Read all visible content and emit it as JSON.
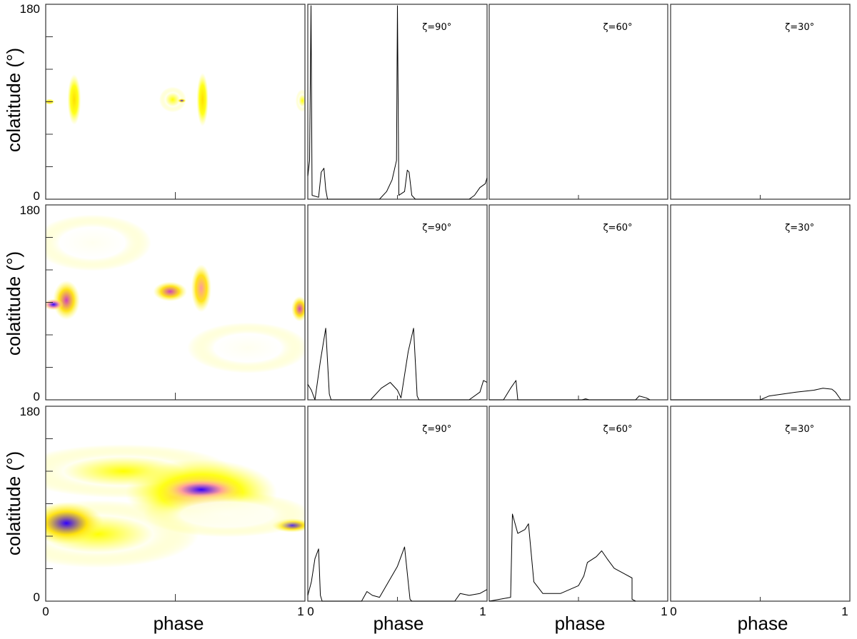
{
  "chart_data": {
    "type": "grid",
    "ylabel": "colatitude (°)",
    "xlabel": "phase",
    "ylim": [
      0,
      180
    ],
    "xlim": [
      0,
      1
    ],
    "map_ytick_labels": [
      "180",
      "0"
    ],
    "xtick_labels": [
      [
        "0",
        "1"
      ],
      [
        "0",
        "1"
      ],
      [
        "1",
        "0"
      ],
      [
        "1"
      ]
    ],
    "zeta_labels": [
      "ζ=90°",
      "ζ=60°",
      "ζ=30°"
    ],
    "colormap": [
      "#ffffff",
      "#fffff0",
      "#ffff00",
      "#ffe000",
      "#ff9aa0",
      "#d040c0",
      "#3000ff",
      "#0a0030"
    ],
    "rows": [
      {
        "map_blobs": [
          {
            "x": 0.015,
            "y": 90,
            "w": 0.03,
            "h": 4,
            "c": 0.55
          },
          {
            "x": 0.11,
            "y": 92,
            "w": 0.04,
            "h": 36,
            "c": 0.4
          },
          {
            "x": 0.49,
            "y": 92,
            "w": 0.08,
            "h": 18,
            "c": 0.3
          },
          {
            "x": 0.525,
            "y": 91,
            "w": 0.025,
            "h": 3,
            "c": 0.8
          },
          {
            "x": 0.605,
            "y": 92,
            "w": 0.035,
            "h": 38,
            "c": 0.4
          },
          {
            "x": 0.99,
            "y": 91,
            "w": 0.04,
            "h": 16,
            "c": 0.3
          }
        ],
        "light_curves": [
          [
            [
              0,
              0.12
            ],
            [
              0.01,
              0.2
            ],
            [
              0.018,
              1.0
            ],
            [
              0.024,
              0.02
            ],
            [
              0.06,
              0.01
            ],
            [
              0.075,
              0.14
            ],
            [
              0.09,
              0.16
            ],
            [
              0.1,
              0.05
            ],
            [
              0.11,
              0
            ],
            [
              0.4,
              0
            ],
            [
              0.44,
              0.04
            ],
            [
              0.47,
              0.1
            ],
            [
              0.495,
              0.2
            ],
            [
              0.5,
              1.0
            ],
            [
              0.508,
              0.02
            ],
            [
              0.54,
              0.04
            ],
            [
              0.555,
              0.15
            ],
            [
              0.565,
              0.14
            ],
            [
              0.58,
              0.02
            ],
            [
              0.6,
              0
            ],
            [
              0.9,
              0
            ],
            [
              0.93,
              0.02
            ],
            [
              0.96,
              0.06
            ],
            [
              0.99,
              0.08
            ],
            [
              1,
              0.11
            ]
          ],
          [],
          []
        ]
      },
      {
        "map_blobs": [
          {
            "x": 0.18,
            "y": 145,
            "w": 0.35,
            "h": 40,
            "c": 0.08
          },
          {
            "x": 0.08,
            "y": 92,
            "w": 0.08,
            "h": 28,
            "c": 0.7
          },
          {
            "x": 0.03,
            "y": 88,
            "w": 0.06,
            "h": 8,
            "c": 0.85
          },
          {
            "x": 0.48,
            "y": 100,
            "w": 0.1,
            "h": 14,
            "c": 0.75
          },
          {
            "x": 0.6,
            "y": 103,
            "w": 0.06,
            "h": 34,
            "c": 0.6
          },
          {
            "x": 0.98,
            "y": 84,
            "w": 0.05,
            "h": 18,
            "c": 0.7
          },
          {
            "x": 0.78,
            "y": 48,
            "w": 0.36,
            "h": 36,
            "c": 0.08
          }
        ],
        "light_curves": [
          [
            [
              0,
              0.08
            ],
            [
              0.02,
              0.05
            ],
            [
              0.04,
              0
            ],
            [
              0.07,
              0.2
            ],
            [
              0.1,
              0.37
            ],
            [
              0.12,
              0.03
            ],
            [
              0.13,
              0
            ],
            [
              0.35,
              0
            ],
            [
              0.41,
              0.06
            ],
            [
              0.46,
              0.09
            ],
            [
              0.5,
              0.05
            ],
            [
              0.52,
              0.01
            ],
            [
              0.56,
              0.25
            ],
            [
              0.59,
              0.37
            ],
            [
              0.61,
              0.02
            ],
            [
              0.62,
              0
            ],
            [
              0.9,
              0
            ],
            [
              0.96,
              0.04
            ],
            [
              0.98,
              0.1
            ],
            [
              1,
              0.09
            ]
          ],
          [
            [
              0,
              0
            ],
            [
              0.08,
              0
            ],
            [
              0.12,
              0.06
            ],
            [
              0.15,
              0.1
            ],
            [
              0.16,
              0
            ],
            [
              0.52,
              0
            ],
            [
              0.54,
              0.005
            ],
            [
              0.56,
              0
            ],
            [
              0.82,
              0
            ],
            [
              0.84,
              0.02
            ],
            [
              0.88,
              0.01
            ],
            [
              0.9,
              0
            ]
          ],
          [
            [
              0,
              0
            ],
            [
              0.5,
              0
            ],
            [
              0.55,
              0.02
            ],
            [
              0.7,
              0.04
            ],
            [
              0.8,
              0.05
            ],
            [
              0.85,
              0.06
            ],
            [
              0.9,
              0.055
            ],
            [
              0.92,
              0.04
            ],
            [
              0.95,
              0
            ]
          ]
        ]
      },
      {
        "map_blobs": [
          {
            "x": 0.3,
            "y": 120,
            "w": 0.65,
            "h": 38,
            "c": 0.25
          },
          {
            "x": 0.6,
            "y": 100,
            "w": 0.45,
            "h": 48,
            "c": 0.55
          },
          {
            "x": 0.6,
            "y": 103,
            "w": 0.22,
            "h": 16,
            "c": 0.85
          },
          {
            "x": 0.2,
            "y": 62,
            "w": 0.6,
            "h": 48,
            "c": 0.35
          },
          {
            "x": 0.08,
            "y": 72,
            "w": 0.22,
            "h": 30,
            "c": 0.8
          },
          {
            "x": 0.95,
            "y": 70,
            "w": 0.12,
            "h": 10,
            "c": 0.8
          },
          {
            "x": 0.7,
            "y": 80,
            "w": 0.5,
            "h": 32,
            "c": 0.2
          }
        ],
        "light_curves": [
          [
            [
              0,
              0.03
            ],
            [
              0.02,
              0.1
            ],
            [
              0.04,
              0.22
            ],
            [
              0.06,
              0.27
            ],
            [
              0.07,
              0.03
            ],
            [
              0.08,
              0
            ],
            [
              0.3,
              0
            ],
            [
              0.33,
              0.05
            ],
            [
              0.36,
              0.03
            ],
            [
              0.4,
              0.02
            ],
            [
              0.45,
              0.1
            ],
            [
              0.5,
              0.18
            ],
            [
              0.54,
              0.28
            ],
            [
              0.57,
              0.01
            ],
            [
              0.58,
              0
            ],
            [
              0.82,
              0
            ],
            [
              0.85,
              0.04
            ],
            [
              0.9,
              0.03
            ],
            [
              0.96,
              0.04
            ],
            [
              1,
              0.06
            ]
          ],
          [
            [
              0,
              0
            ],
            [
              0.12,
              0.02
            ],
            [
              0.13,
              0.45
            ],
            [
              0.16,
              0.35
            ],
            [
              0.2,
              0.37
            ],
            [
              0.22,
              0.4
            ],
            [
              0.25,
              0.1
            ],
            [
              0.3,
              0.04
            ],
            [
              0.4,
              0.04
            ],
            [
              0.5,
              0.08
            ],
            [
              0.53,
              0.13
            ],
            [
              0.55,
              0.2
            ],
            [
              0.6,
              0.23
            ],
            [
              0.63,
              0.26
            ],
            [
              0.66,
              0.22
            ],
            [
              0.7,
              0.17
            ],
            [
              0.76,
              0.14
            ],
            [
              0.8,
              0.12
            ],
            [
              0.8,
              0.01
            ],
            [
              0.82,
              0
            ]
          ],
          []
        ]
      }
    ]
  }
}
